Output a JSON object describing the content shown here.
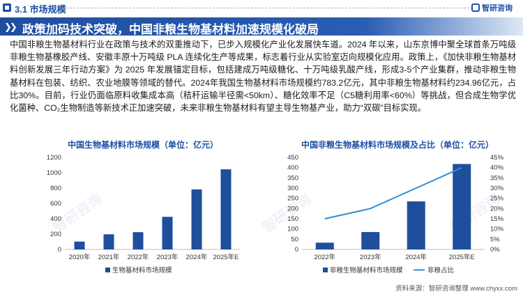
{
  "header": {
    "section_title": "3.1 市场规模",
    "logo_text": "智研咨询"
  },
  "banner": {
    "chevrons": "❯❯",
    "title": "政策加码技术突破，中国非粮生物基材料加速规模化破局"
  },
  "body_text": "中国非粮生物基材料行业在政策与技术的双重推动下，已步入规模化产业化发展快车道。2024 年以来，山东京博中聚全球首条万吨级非粮生物基橡胶产线、安徽丰原十万吨级 PLA 连续化生产等成果，标志着行业从实验室迈向规模化应用。政策上，《加快非粮生物基材料创新发展三年行动方案》为 2025 年发展锚定目标，包括建成万吨级糖化、十万吨级乳酸产线，形成3-5个产业集群，推动非粮生物基材料在包装、纺织、农业地膜等领域的替代。2024年我国生物基材料市场规模约783.2亿元，其中非粮生物基材料约234.96亿元，占比30%。目前，行业仍面临原料收集成本高（秸秆运输半径需<50km）、糖化效率不足（C5糖利用率<60%）等挑战，但合成生物学优化菌种、CO₂生物制造等新技术正加速突破，未来非粮生物基材料有望主导生物基产业，助力“双碳”目标实现。",
  "watermark": "智研咨询",
  "source": "资料来源：智研咨询整理  www.chyxx.com",
  "colors": {
    "brand": "#1d4fa3",
    "bar": "#1f4e9c",
    "line": "#2e8fd6"
  },
  "chart_data": [
    {
      "type": "bar",
      "title": "中国生物基材料市场规模（单位：亿元）",
      "categories": [
        "2020年",
        "2021年",
        "2022年",
        "2023年",
        "2024年",
        "2025年E"
      ],
      "series": [
        {
          "name": "生物基材料市场规模",
          "values": [
            102,
            197,
            225,
            425,
            783.2,
            1045
          ]
        }
      ],
      "ylim": [
        0,
        1200
      ],
      "yticks": [
        "0",
        "200",
        "400",
        "600",
        "800",
        "1000",
        "1200"
      ],
      "legend": "bottom",
      "grid": false
    },
    {
      "type": "bar",
      "title": "中国非粮生物基材料市场规模及占比（单位：亿元）",
      "categories": [
        "2022年",
        "2023年",
        "2024年",
        "2025年E"
      ],
      "series": [
        {
          "name": "非粮生物基材料市场规模",
          "type": "bar",
          "axis": "left",
          "values": [
            33,
            85,
            234.96,
            418
          ]
        },
        {
          "name": "非粮占比",
          "type": "line",
          "axis": "right",
          "values": [
            0.15,
            0.2,
            0.3,
            0.4
          ]
        }
      ],
      "ylim": [
        0,
        450
      ],
      "yticks": [
        "0",
        "50",
        "100",
        "150",
        "200",
        "250",
        "300",
        "350",
        "400",
        "450"
      ],
      "y2lim": [
        0,
        0.45
      ],
      "y2ticks": [
        "0%",
        "5%",
        "10%",
        "15%",
        "20%",
        "25%",
        "30%",
        "35%",
        "40%",
        "45%"
      ],
      "legend": "bottom",
      "grid": false
    }
  ]
}
